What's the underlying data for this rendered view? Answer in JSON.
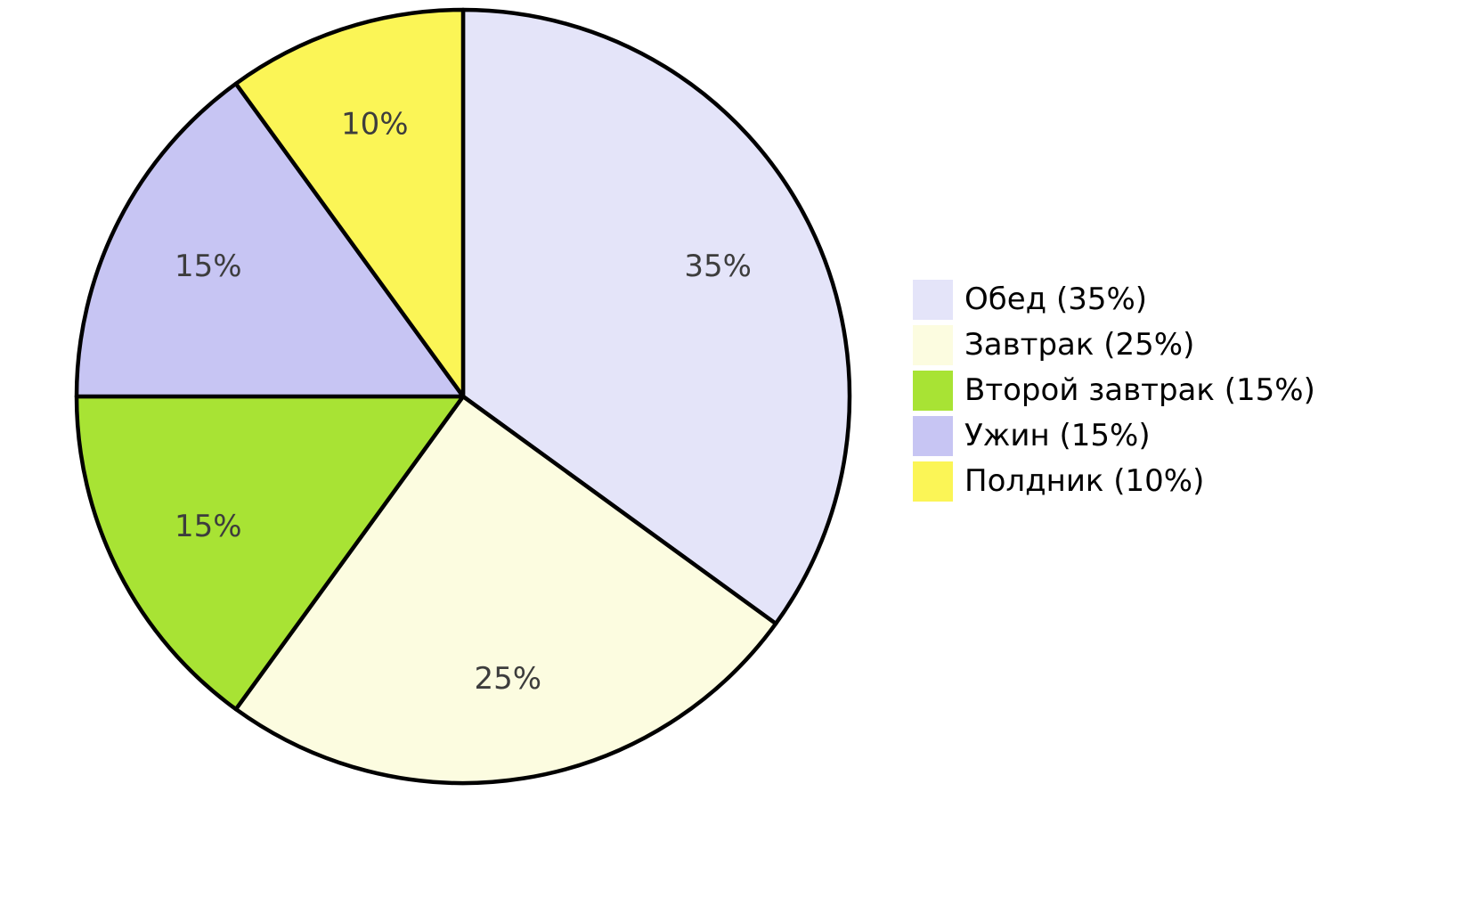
{
  "chart_data": {
    "type": "pie",
    "title": "",
    "unit": "percent",
    "direction": "clockwise",
    "start_angle_deg": 0,
    "legend_position": "right",
    "grid": false,
    "stroke_color": "#000000",
    "stroke_width": 4.5,
    "label_color": "#3d3d3d",
    "label_radius_frac": 0.74,
    "slices": [
      {
        "label": "Обед",
        "value": 35,
        "color": "#E4E4F9",
        "percent_label": "35%",
        "legend_label": "Обед (35%)"
      },
      {
        "label": "Завтрак",
        "value": 25,
        "color": "#FCFCE0",
        "percent_label": "25%",
        "legend_label": "Завтрак (25%)"
      },
      {
        "label": "Второй завтрак",
        "value": 15,
        "color": "#A8E334",
        "percent_label": "15%",
        "legend_label": "Второй завтрак (15%)"
      },
      {
        "label": "Ужин",
        "value": 15,
        "color": "#C7C5F3",
        "percent_label": "15%",
        "legend_label": "Ужин (15%)"
      },
      {
        "label": "Полдник",
        "value": 10,
        "color": "#FBF556",
        "percent_label": "10%",
        "legend_label": "Полдник (10%)"
      }
    ]
  }
}
